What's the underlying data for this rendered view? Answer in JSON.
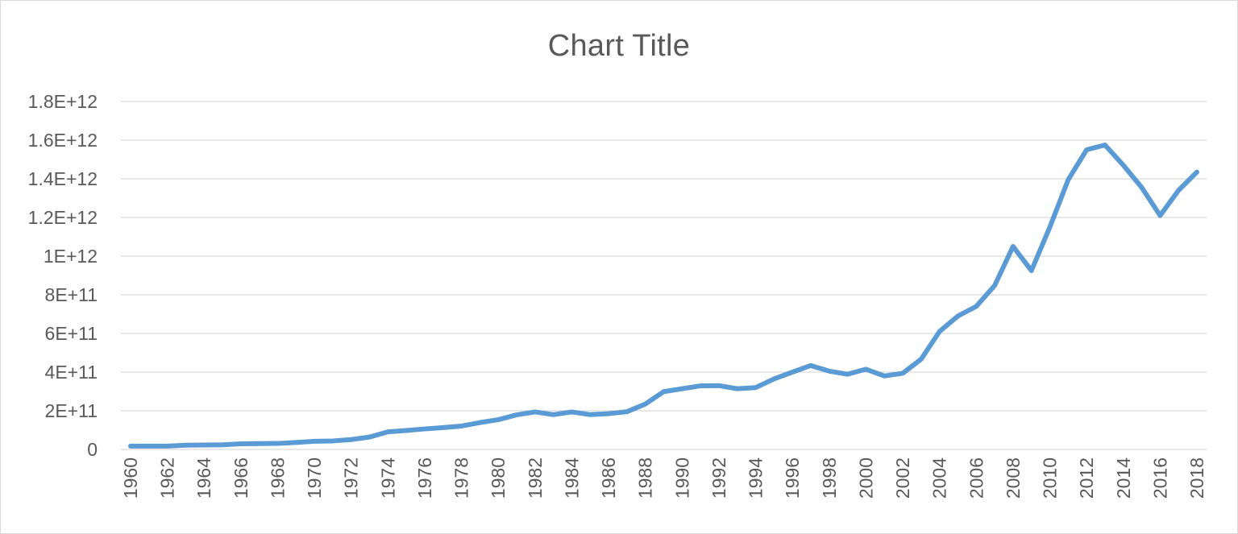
{
  "chart_data": {
    "type": "line",
    "title": "Chart Title",
    "xlabel": "",
    "ylabel": "",
    "ylim": [
      0,
      1800000000000
    ],
    "yticks": [
      {
        "value": 0,
        "label": "0"
      },
      {
        "value": 200000000000,
        "label": "2E+11"
      },
      {
        "value": 400000000000,
        "label": "4E+11"
      },
      {
        "value": 600000000000,
        "label": "6E+11"
      },
      {
        "value": 800000000000,
        "label": "8E+11"
      },
      {
        "value": 1000000000000,
        "label": "1E+12"
      },
      {
        "value": 1200000000000,
        "label": "1.2E+12"
      },
      {
        "value": 1400000000000,
        "label": "1.4E+12"
      },
      {
        "value": 1600000000000,
        "label": "1.6E+12"
      },
      {
        "value": 1800000000000,
        "label": "1.8E+12"
      }
    ],
    "xtick_labels": [
      "1960",
      "1962",
      "1964",
      "1966",
      "1968",
      "1970",
      "1972",
      "1974",
      "1976",
      "1978",
      "1980",
      "1982",
      "1984",
      "1986",
      "1988",
      "1990",
      "1992",
      "1994",
      "1996",
      "1998",
      "2000",
      "2002",
      "2004",
      "2006",
      "2008",
      "2010",
      "2012",
      "2014",
      "2016",
      "2018"
    ],
    "grid": true,
    "legend": "none",
    "line_color": "#5b9bd5",
    "series": [
      {
        "x": [
          "1960",
          "1961",
          "1962",
          "1963",
          "1964",
          "1965",
          "1966",
          "1967",
          "1968",
          "1969",
          "1970",
          "1971",
          "1972",
          "1973",
          "1974",
          "1975",
          "1976",
          "1977",
          "1978",
          "1979",
          "1980",
          "1981",
          "1982",
          "1983",
          "1984",
          "1985",
          "1986",
          "1987",
          "1988",
          "1989",
          "1990",
          "1991",
          "1992",
          "1993",
          "1994",
          "1995",
          "1996",
          "1997",
          "1998",
          "1999",
          "2000",
          "2001",
          "2002",
          "2003",
          "2004",
          "2005",
          "2006",
          "2007",
          "2008",
          "2009",
          "2010",
          "2011",
          "2012",
          "2013",
          "2014",
          "2015",
          "2016",
          "2017",
          "2018"
        ],
        "values": [
          17000000000,
          17000000000,
          17000000000,
          22000000000,
          23000000000,
          24000000000,
          29000000000,
          30000000000,
          31000000000,
          36000000000,
          42000000000,
          44000000000,
          51000000000,
          64000000000,
          91000000000,
          98000000000,
          106000000000,
          113000000000,
          121000000000,
          139000000000,
          154000000000,
          179000000000,
          194000000000,
          180000000000,
          194000000000,
          180000000000,
          185000000000,
          195000000000,
          235000000000,
          299000000000,
          314000000000,
          329000000000,
          330000000000,
          314000000000,
          320000000000,
          365000000000,
          400000000000,
          434000000000,
          405000000000,
          389000000000,
          415000000000,
          380000000000,
          394000000000,
          467000000000,
          610000000000,
          690000000000,
          740000000000,
          848000000000,
          1050000000000,
          925000000000,
          1150000000000,
          1395000000000,
          1550000000000,
          1575000000000,
          1470000000000,
          1355000000000,
          1210000000000,
          1340000000000,
          1435000000000
        ]
      }
    ]
  }
}
